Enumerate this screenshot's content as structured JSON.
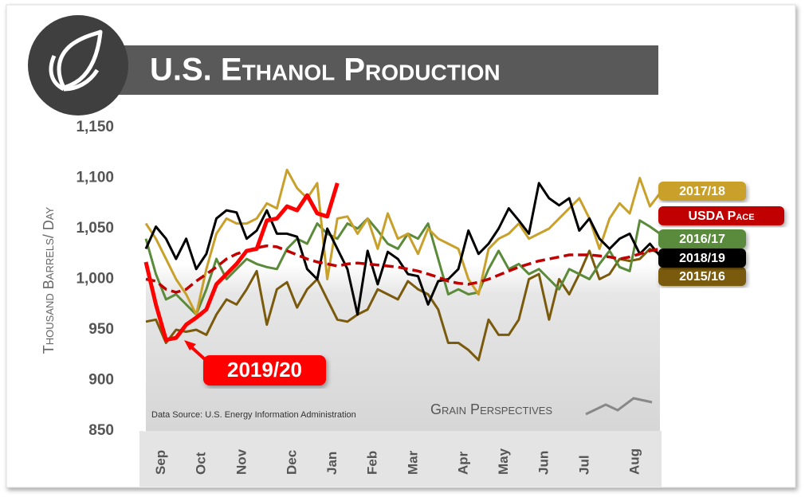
{
  "chart_data": {
    "type": "line",
    "title": "U.S. Ethanol Production",
    "y_label": "Thousand Barrels/ Day",
    "source": "Data Source: U.S. Energy Information Administration",
    "brand": "Grain Perspectives",
    "categories": [
      null,
      "Sep",
      null,
      null,
      null,
      "Oct",
      null,
      null,
      null,
      "Nov",
      null,
      null,
      null,
      null,
      "Dec",
      null,
      null,
      null,
      "Jan",
      null,
      null,
      null,
      "Feb",
      null,
      null,
      null,
      "Mar",
      null,
      null,
      null,
      null,
      "Apr",
      null,
      null,
      null,
      "May",
      null,
      null,
      null,
      "Jun",
      null,
      null,
      null,
      "Jul",
      null,
      null,
      null,
      null,
      "Aug",
      null,
      null,
      null
    ],
    "ylim": [
      850,
      1150
    ],
    "yticks": [
      {
        "value": 850,
        "label": "850"
      },
      {
        "value": 900,
        "label": "900"
      },
      {
        "value": 950,
        "label": "950"
      },
      {
        "value": 1000,
        "label": "1,000"
      },
      {
        "value": 1050,
        "label": "1,050"
      },
      {
        "value": 1100,
        "label": "1,100"
      },
      {
        "value": 1150,
        "label": "1,150"
      }
    ],
    "series": [
      {
        "name": "2015/16",
        "color": "#7a5a0c",
        "values": [
          958,
          960,
          937,
          950,
          948,
          950,
          945,
          965,
          980,
          975,
          990,
          1008,
          955,
          990,
          997,
          972,
          990,
          1000,
          980,
          960,
          958,
          965,
          970,
          990,
          985,
          980,
          998,
          990,
          985,
          970,
          937,
          937,
          930,
          920,
          960,
          945,
          945,
          960,
          1000,
          1005,
          960,
          1000,
          985,
          1005,
          1028,
          1000,
          1005,
          1020,
          1018,
          1020,
          1030,
          1025
        ]
      },
      {
        "name": "2016/17",
        "color": "#5a8a3a",
        "values": [
          1040,
          1005,
          980,
          985,
          975,
          965,
          990,
          1020,
          1000,
          1010,
          1020,
          1015,
          1012,
          1010,
          1030,
          1040,
          1035,
          1055,
          1045,
          1040,
          1055,
          1050,
          1060,
          1048,
          1035,
          1030,
          1045,
          1040,
          1055,
          1020,
          985,
          990,
          985,
          987,
          1010,
          1028,
          1010,
          1015,
          1005,
          1010,
          1000,
          990,
          1010,
          1005,
          1000,
          1015,
          1028,
          1012,
          1008,
          1058,
          1052,
          1045
        ]
      },
      {
        "name": "2017/18",
        "color": "#c9a02a",
        "values": [
          1055,
          1040,
          1020,
          1000,
          985,
          965,
          1010,
          1045,
          1060,
          1055,
          1055,
          1060,
          1075,
          1070,
          1108,
          1090,
          1080,
          1095,
          1000,
          1060,
          1062,
          1045,
          1060,
          1030,
          1065,
          1040,
          1045,
          1025,
          1050,
          1040,
          1035,
          1030,
          1000,
          985,
          1030,
          1040,
          1045,
          1055,
          1040,
          1045,
          1050,
          1060,
          1070,
          1080,
          1060,
          1030,
          1060,
          1075,
          1065,
          1100,
          1072,
          1085
        ]
      },
      {
        "name": "2018/19",
        "color": "#000000",
        "values": [
          1030,
          1052,
          1040,
          1020,
          1040,
          1010,
          1025,
          1060,
          1068,
          1066,
          1040,
          1048,
          1068,
          1045,
          1045,
          1042,
          1010,
          1000,
          1050,
          1030,
          1010,
          965,
          1028,
          995,
          1027,
          1020,
          1005,
          1003,
          975,
          998,
          1000,
          1010,
          1048,
          1025,
          1035,
          1050,
          1070,
          1058,
          1045,
          1095,
          1080,
          1073,
          1080,
          1048,
          1060,
          1040,
          1030,
          1040,
          1045,
          1025,
          1035,
          1023
        ]
      },
      {
        "name": "USDA Pace",
        "color": "#c00000",
        "dashed": true,
        "values": [
          1000,
          998,
          990,
          987,
          990,
          998,
          1005,
          1012,
          1020,
          1025,
          1028,
          1031,
          1033,
          1032,
          1028,
          1024,
          1020,
          1017,
          1015,
          1013,
          1015,
          1016,
          1015,
          1014,
          1013,
          1012,
          1010,
          1008,
          1005,
          1002,
          998,
          996,
          995,
          997,
          1000,
          1004,
          1008,
          1012,
          1015,
          1018,
          1020,
          1022,
          1024,
          1024,
          1024,
          1023,
          1022,
          1020,
          1022,
          1025,
          1028,
          1030
        ]
      },
      {
        "name": "2019/20",
        "color": "#ff0000",
        "values": [
          1017,
          975,
          940,
          942,
          955,
          962,
          970,
          995,
          1005,
          1015,
          1028,
          1030,
          1058,
          1060,
          1072,
          1068,
          1083,
          1065,
          1062,
          1095,
          null,
          null,
          null,
          null,
          null,
          null,
          null,
          null,
          null,
          null,
          null,
          null,
          null,
          null,
          null,
          null,
          null,
          null,
          null,
          null,
          null,
          null,
          null,
          null,
          null,
          null,
          null,
          null,
          null,
          null,
          null,
          null
        ]
      }
    ]
  }
}
